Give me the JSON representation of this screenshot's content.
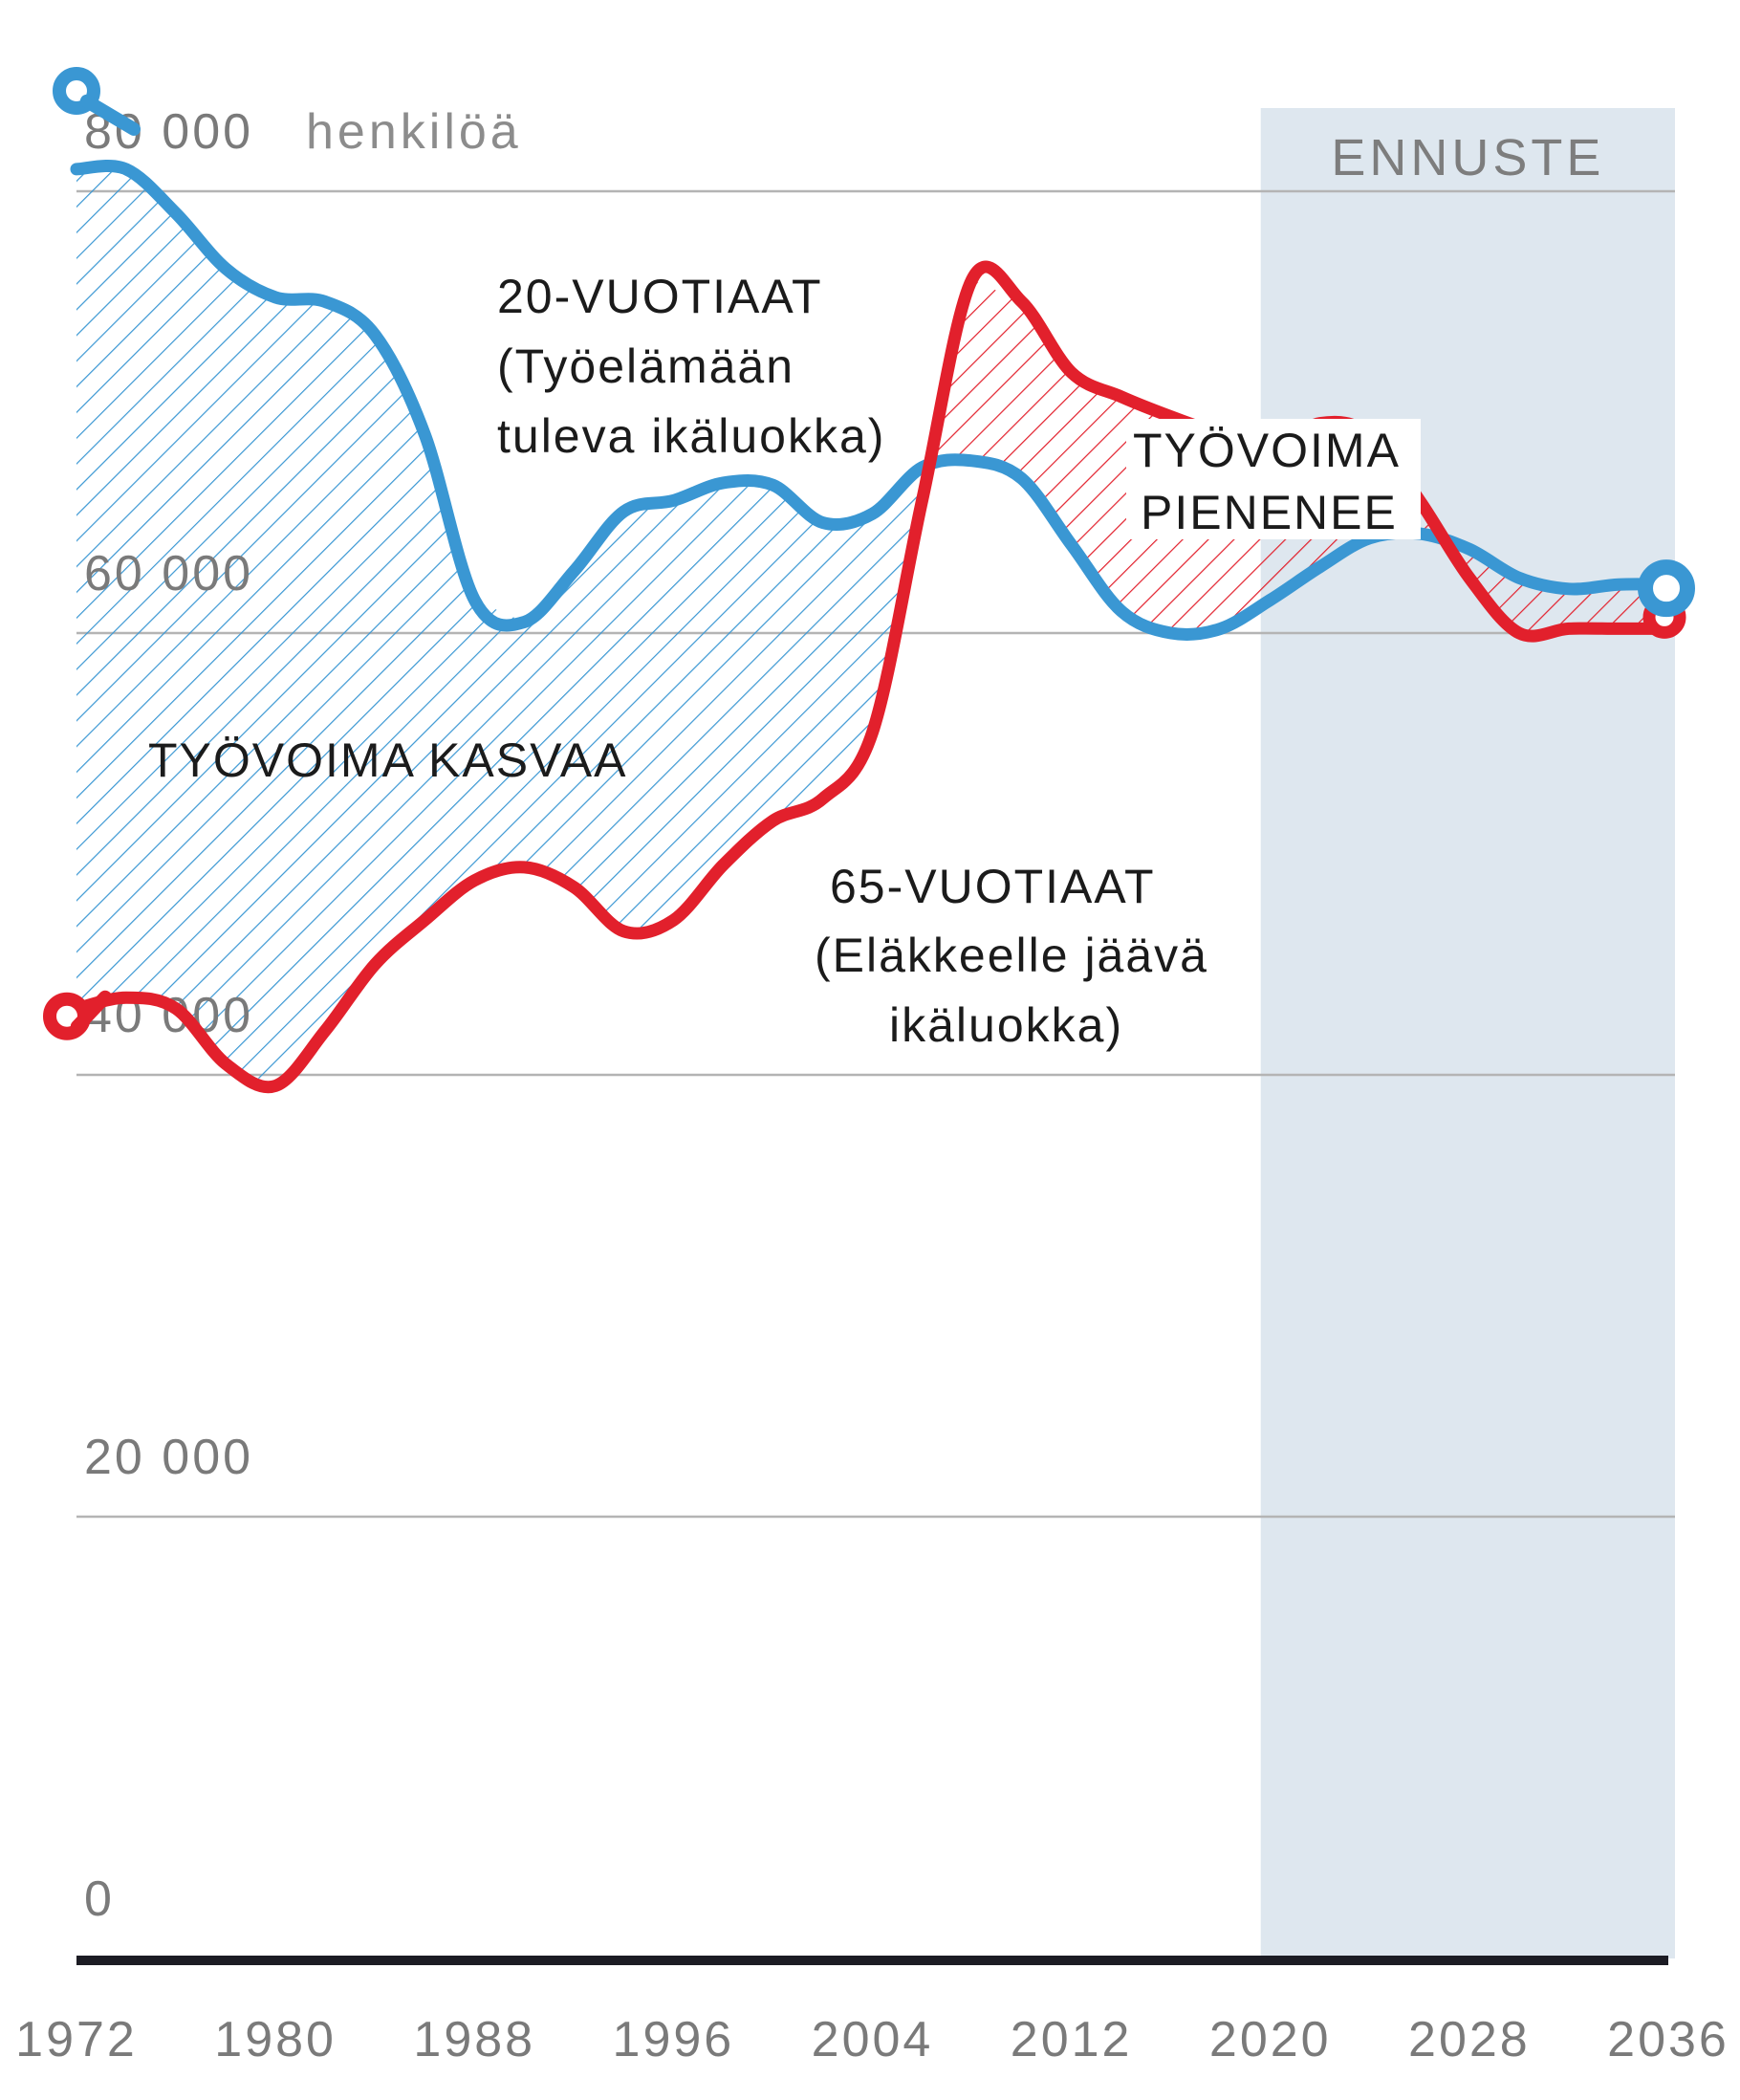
{
  "chart_data": {
    "type": "line",
    "ylabel": "henkilöä",
    "ylim": [
      0,
      80000
    ],
    "xlim": [
      1972,
      2036
    ],
    "y_ticks": [
      {
        "value": 80000,
        "label": "80 000"
      },
      {
        "value": 60000,
        "label": "60 000"
      },
      {
        "value": 40000,
        "label": "40 000"
      },
      {
        "value": 20000,
        "label": "20 000"
      },
      {
        "value": 0,
        "label": "0"
      }
    ],
    "x_ticks": [
      1972,
      1980,
      1988,
      1996,
      2004,
      2012,
      2020,
      2028,
      2036
    ],
    "forecast": {
      "label": "ENNUSTE",
      "from": 2020,
      "to": 2036
    },
    "grid": true,
    "series": [
      {
        "name": "20-VUOTIAAT",
        "name_line2": "(Työelämään",
        "name_line3": "tuleva ikäluokka)",
        "color": "#3a97d3",
        "x": [
          1972,
          1974,
          1976,
          1978,
          1980,
          1982,
          1984,
          1986,
          1988,
          1990,
          1992,
          1994,
          1996,
          1998,
          2000,
          2002,
          2004,
          2006,
          2008,
          2010,
          2012,
          2014,
          2016,
          2018,
          2020,
          2022,
          2024,
          2026,
          2028,
          2030,
          2032,
          2034,
          2036
        ],
        "values": [
          81000,
          81000,
          79000,
          76500,
          75200,
          75000,
          73500,
          69000,
          61500,
          60500,
          62800,
          65500,
          66000,
          66800,
          66700,
          65000,
          65400,
          67500,
          67800,
          67000,
          64000,
          61000,
          60000,
          60200,
          61500,
          63000,
          64300,
          64500,
          63800,
          62500,
          62000,
          62200,
          62200
        ]
      },
      {
        "name": "65-VUOTIAAT",
        "name_line2": "(Eläkkeelle jäävä",
        "name_line3": "ikäluokka)",
        "color": "#e2202c",
        "x": [
          1972,
          1974,
          1976,
          1978,
          1980,
          1982,
          1984,
          1986,
          1988,
          1990,
          1992,
          1994,
          1996,
          1998,
          2000,
          2002,
          2004,
          2006,
          2008,
          2010,
          2012,
          2014,
          2016,
          2018,
          2020,
          2022,
          2024,
          2026,
          2028,
          2030,
          2032,
          2034,
          2036
        ],
        "values": [
          43000,
          43500,
          43000,
          40500,
          39500,
          42000,
          45000,
          47000,
          48800,
          49400,
          48500,
          46500,
          47000,
          49500,
          51500,
          52500,
          55500,
          66000,
          76000,
          75000,
          71800,
          70700,
          69800,
          69000,
          68300,
          69500,
          69000,
          66000,
          62500,
          60000,
          60200,
          60200,
          60200
        ]
      }
    ],
    "annotations": [
      {
        "text": "TYÖVOIMA KASVAA"
      },
      {
        "text": "TYÖVOIMA"
      },
      {
        "text": "PIENENEE"
      }
    ]
  }
}
